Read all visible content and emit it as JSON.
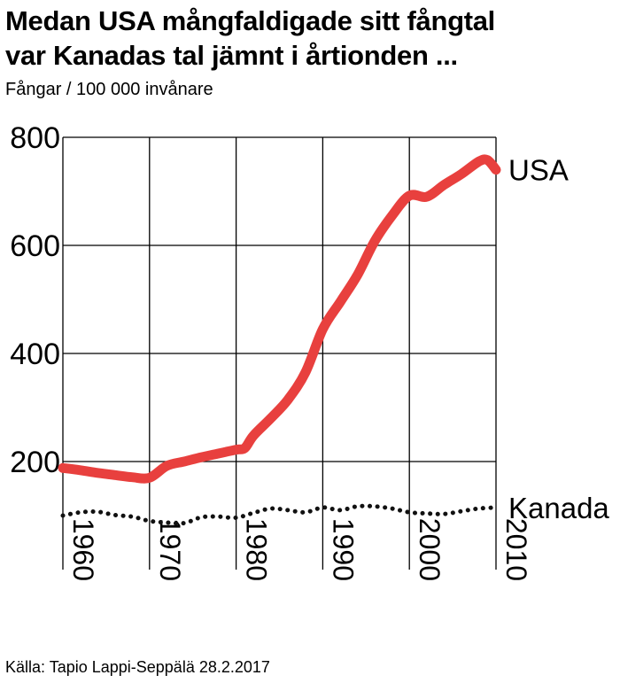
{
  "title_lines": [
    "Medan USA mångfaldigade sitt fångtal",
    "var Kanadas tal jämnt i årtionden ..."
  ],
  "source": "Källa: Tapio Lappi-Seppälä 28.2.2017",
  "chart_data": {
    "type": "line",
    "title": "Medan USA mångfaldigade sitt fångtal var Kanadas tal jämnt i årtionden ...",
    "ylabel": "Fångar / 100 000 invånare",
    "xlabel": "",
    "xlim": [
      1960,
      2010
    ],
    "ylim": [
      0,
      800
    ],
    "grid": true,
    "x_ticks": [
      1960,
      1970,
      1980,
      1990,
      2000,
      2010
    ],
    "y_ticks": [
      200,
      400,
      600,
      800
    ],
    "x_tick_labels": [
      "1960",
      "1970",
      "1980",
      "1990",
      "2000",
      "2010"
    ],
    "y_tick_labels": [
      "200",
      "400",
      "600",
      "800"
    ],
    "series": [
      {
        "name": "USA",
        "color": "#e8403e",
        "style": "solid",
        "x": [
          1960,
          1962,
          1964,
          1966,
          1968,
          1970,
          1972,
          1974,
          1976,
          1978,
          1980,
          1981,
          1982,
          1984,
          1986,
          1988,
          1990,
          1992,
          1994,
          1996,
          1998,
          2000,
          2002,
          2004,
          2006,
          2008,
          2009,
          2010
        ],
        "y": [
          188,
          184,
          179,
          175,
          171,
          170,
          192,
          200,
          208,
          215,
          222,
          225,
          248,
          280,
          315,
          365,
          445,
          495,
          545,
          608,
          655,
          692,
          690,
          712,
          732,
          755,
          758,
          740
        ]
      },
      {
        "name": "Kanada",
        "color": "#111111",
        "style": "dotted",
        "x": [
          1960,
          1962,
          1964,
          1966,
          1968,
          1970,
          1972,
          1974,
          1976,
          1978,
          1980,
          1982,
          1984,
          1986,
          1988,
          1990,
          1992,
          1994,
          1996,
          1998,
          2000,
          2002,
          2004,
          2006,
          2008,
          2010
        ],
        "y": [
          100,
          106,
          107,
          101,
          98,
          90,
          87,
          86,
          97,
          98,
          96,
          105,
          113,
          110,
          106,
          115,
          110,
          117,
          117,
          113,
          106,
          104,
          103,
          108,
          113,
          115
        ]
      }
    ]
  }
}
